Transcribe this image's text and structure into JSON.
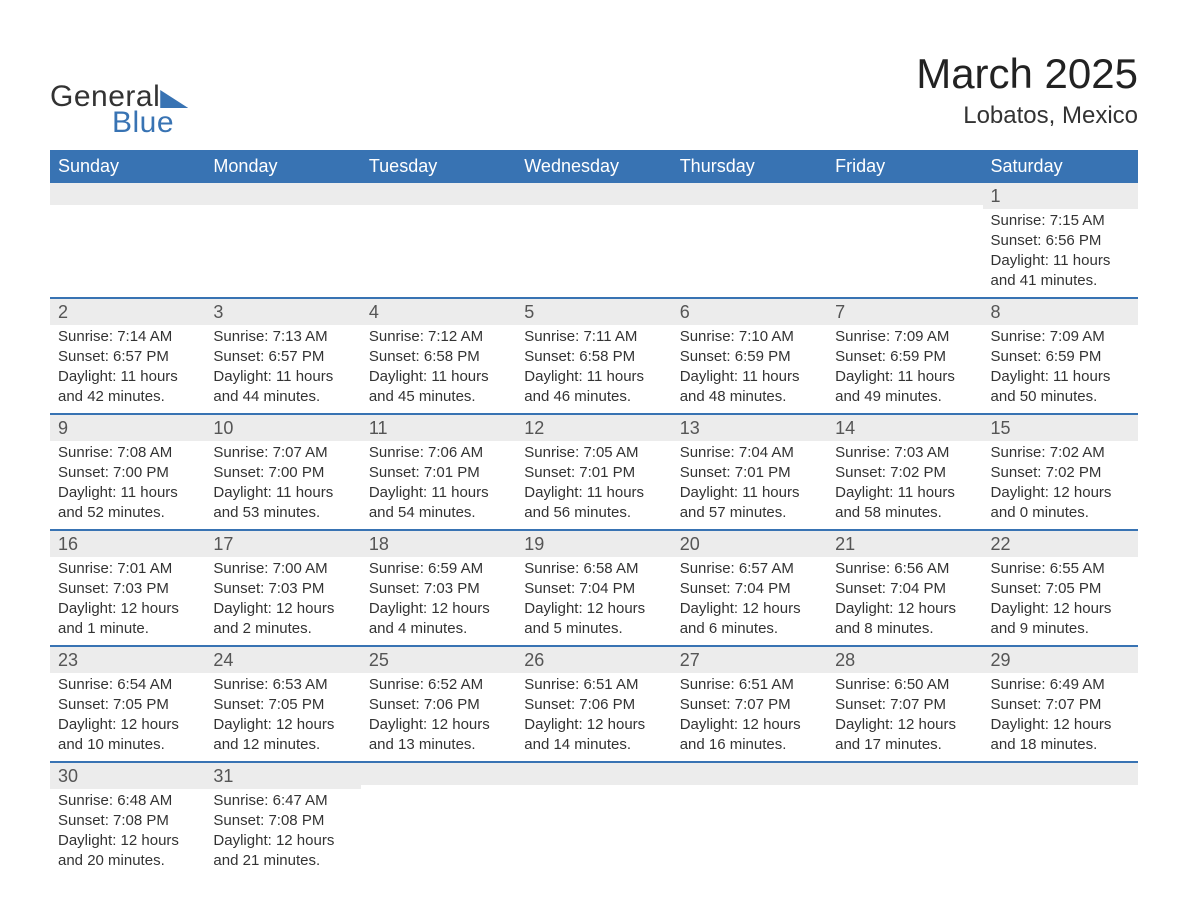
{
  "logo": {
    "text1": "General",
    "text2": "Blue",
    "flag_color": "#3873b3"
  },
  "title": "March 2025",
  "location": "Lobatos, Mexico",
  "colors": {
    "header_bg": "#3873b3",
    "header_text": "#ffffff",
    "daynum_bg": "#ececec",
    "row_border": "#3873b3",
    "text": "#333333",
    "background": "#ffffff"
  },
  "typography": {
    "title_fontsize": 42,
    "location_fontsize": 24,
    "dayheader_fontsize": 18,
    "daynum_fontsize": 18,
    "body_fontsize": 15
  },
  "day_headers": [
    "Sunday",
    "Monday",
    "Tuesday",
    "Wednesday",
    "Thursday",
    "Friday",
    "Saturday"
  ],
  "weeks": [
    [
      {
        "n": "",
        "sunrise": "",
        "sunset": "",
        "daylight": ""
      },
      {
        "n": "",
        "sunrise": "",
        "sunset": "",
        "daylight": ""
      },
      {
        "n": "",
        "sunrise": "",
        "sunset": "",
        "daylight": ""
      },
      {
        "n": "",
        "sunrise": "",
        "sunset": "",
        "daylight": ""
      },
      {
        "n": "",
        "sunrise": "",
        "sunset": "",
        "daylight": ""
      },
      {
        "n": "",
        "sunrise": "",
        "sunset": "",
        "daylight": ""
      },
      {
        "n": "1",
        "sunrise": "Sunrise: 7:15 AM",
        "sunset": "Sunset: 6:56 PM",
        "daylight": "Daylight: 11 hours and 41 minutes."
      }
    ],
    [
      {
        "n": "2",
        "sunrise": "Sunrise: 7:14 AM",
        "sunset": "Sunset: 6:57 PM",
        "daylight": "Daylight: 11 hours and 42 minutes."
      },
      {
        "n": "3",
        "sunrise": "Sunrise: 7:13 AM",
        "sunset": "Sunset: 6:57 PM",
        "daylight": "Daylight: 11 hours and 44 minutes."
      },
      {
        "n": "4",
        "sunrise": "Sunrise: 7:12 AM",
        "sunset": "Sunset: 6:58 PM",
        "daylight": "Daylight: 11 hours and 45 minutes."
      },
      {
        "n": "5",
        "sunrise": "Sunrise: 7:11 AM",
        "sunset": "Sunset: 6:58 PM",
        "daylight": "Daylight: 11 hours and 46 minutes."
      },
      {
        "n": "6",
        "sunrise": "Sunrise: 7:10 AM",
        "sunset": "Sunset: 6:59 PM",
        "daylight": "Daylight: 11 hours and 48 minutes."
      },
      {
        "n": "7",
        "sunrise": "Sunrise: 7:09 AM",
        "sunset": "Sunset: 6:59 PM",
        "daylight": "Daylight: 11 hours and 49 minutes."
      },
      {
        "n": "8",
        "sunrise": "Sunrise: 7:09 AM",
        "sunset": "Sunset: 6:59 PM",
        "daylight": "Daylight: 11 hours and 50 minutes."
      }
    ],
    [
      {
        "n": "9",
        "sunrise": "Sunrise: 7:08 AM",
        "sunset": "Sunset: 7:00 PM",
        "daylight": "Daylight: 11 hours and 52 minutes."
      },
      {
        "n": "10",
        "sunrise": "Sunrise: 7:07 AM",
        "sunset": "Sunset: 7:00 PM",
        "daylight": "Daylight: 11 hours and 53 minutes."
      },
      {
        "n": "11",
        "sunrise": "Sunrise: 7:06 AM",
        "sunset": "Sunset: 7:01 PM",
        "daylight": "Daylight: 11 hours and 54 minutes."
      },
      {
        "n": "12",
        "sunrise": "Sunrise: 7:05 AM",
        "sunset": "Sunset: 7:01 PM",
        "daylight": "Daylight: 11 hours and 56 minutes."
      },
      {
        "n": "13",
        "sunrise": "Sunrise: 7:04 AM",
        "sunset": "Sunset: 7:01 PM",
        "daylight": "Daylight: 11 hours and 57 minutes."
      },
      {
        "n": "14",
        "sunrise": "Sunrise: 7:03 AM",
        "sunset": "Sunset: 7:02 PM",
        "daylight": "Daylight: 11 hours and 58 minutes."
      },
      {
        "n": "15",
        "sunrise": "Sunrise: 7:02 AM",
        "sunset": "Sunset: 7:02 PM",
        "daylight": "Daylight: 12 hours and 0 minutes."
      }
    ],
    [
      {
        "n": "16",
        "sunrise": "Sunrise: 7:01 AM",
        "sunset": "Sunset: 7:03 PM",
        "daylight": "Daylight: 12 hours and 1 minute."
      },
      {
        "n": "17",
        "sunrise": "Sunrise: 7:00 AM",
        "sunset": "Sunset: 7:03 PM",
        "daylight": "Daylight: 12 hours and 2 minutes."
      },
      {
        "n": "18",
        "sunrise": "Sunrise: 6:59 AM",
        "sunset": "Sunset: 7:03 PM",
        "daylight": "Daylight: 12 hours and 4 minutes."
      },
      {
        "n": "19",
        "sunrise": "Sunrise: 6:58 AM",
        "sunset": "Sunset: 7:04 PM",
        "daylight": "Daylight: 12 hours and 5 minutes."
      },
      {
        "n": "20",
        "sunrise": "Sunrise: 6:57 AM",
        "sunset": "Sunset: 7:04 PM",
        "daylight": "Daylight: 12 hours and 6 minutes."
      },
      {
        "n": "21",
        "sunrise": "Sunrise: 6:56 AM",
        "sunset": "Sunset: 7:04 PM",
        "daylight": "Daylight: 12 hours and 8 minutes."
      },
      {
        "n": "22",
        "sunrise": "Sunrise: 6:55 AM",
        "sunset": "Sunset: 7:05 PM",
        "daylight": "Daylight: 12 hours and 9 minutes."
      }
    ],
    [
      {
        "n": "23",
        "sunrise": "Sunrise: 6:54 AM",
        "sunset": "Sunset: 7:05 PM",
        "daylight": "Daylight: 12 hours and 10 minutes."
      },
      {
        "n": "24",
        "sunrise": "Sunrise: 6:53 AM",
        "sunset": "Sunset: 7:05 PM",
        "daylight": "Daylight: 12 hours and 12 minutes."
      },
      {
        "n": "25",
        "sunrise": "Sunrise: 6:52 AM",
        "sunset": "Sunset: 7:06 PM",
        "daylight": "Daylight: 12 hours and 13 minutes."
      },
      {
        "n": "26",
        "sunrise": "Sunrise: 6:51 AM",
        "sunset": "Sunset: 7:06 PM",
        "daylight": "Daylight: 12 hours and 14 minutes."
      },
      {
        "n": "27",
        "sunrise": "Sunrise: 6:51 AM",
        "sunset": "Sunset: 7:07 PM",
        "daylight": "Daylight: 12 hours and 16 minutes."
      },
      {
        "n": "28",
        "sunrise": "Sunrise: 6:50 AM",
        "sunset": "Sunset: 7:07 PM",
        "daylight": "Daylight: 12 hours and 17 minutes."
      },
      {
        "n": "29",
        "sunrise": "Sunrise: 6:49 AM",
        "sunset": "Sunset: 7:07 PM",
        "daylight": "Daylight: 12 hours and 18 minutes."
      }
    ],
    [
      {
        "n": "30",
        "sunrise": "Sunrise: 6:48 AM",
        "sunset": "Sunset: 7:08 PM",
        "daylight": "Daylight: 12 hours and 20 minutes."
      },
      {
        "n": "31",
        "sunrise": "Sunrise: 6:47 AM",
        "sunset": "Sunset: 7:08 PM",
        "daylight": "Daylight: 12 hours and 21 minutes."
      },
      {
        "n": "",
        "sunrise": "",
        "sunset": "",
        "daylight": ""
      },
      {
        "n": "",
        "sunrise": "",
        "sunset": "",
        "daylight": ""
      },
      {
        "n": "",
        "sunrise": "",
        "sunset": "",
        "daylight": ""
      },
      {
        "n": "",
        "sunrise": "",
        "sunset": "",
        "daylight": ""
      },
      {
        "n": "",
        "sunrise": "",
        "sunset": "",
        "daylight": ""
      }
    ]
  ]
}
